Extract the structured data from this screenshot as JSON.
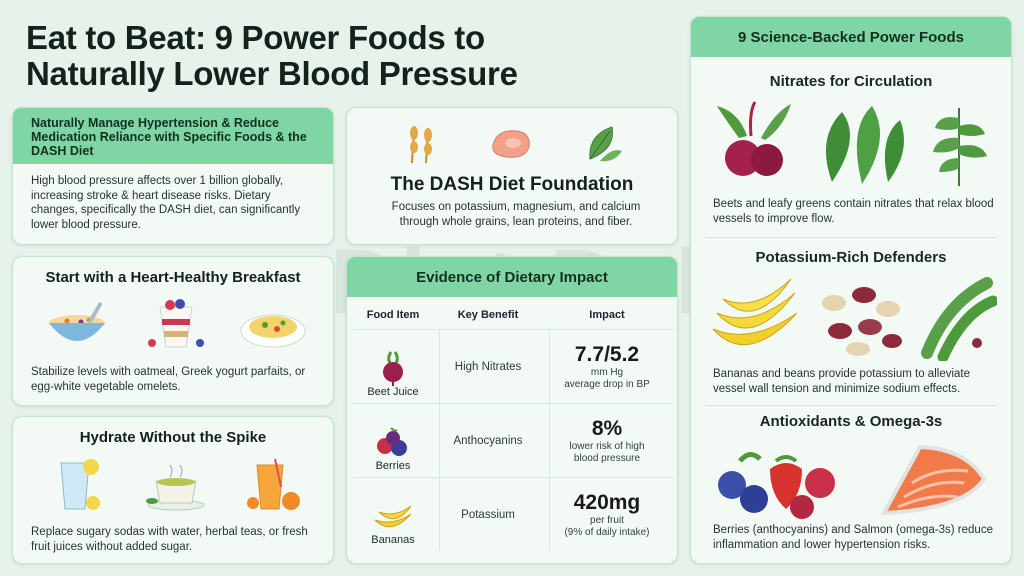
{
  "title": {
    "line1": "Eat to Beat: 9 Power Foods to",
    "line2": "Naturally Lower Blood Pressure"
  },
  "intro": {
    "heading": "Naturally Manage Hypertension & Reduce Medication Reliance with Specific Foods & the DASH Diet",
    "text": "High blood pressure affects over 1 billion globally, increasing stroke & heart disease risks. Dietary changes, specifically the DASH diet, can significantly lower blood pressure."
  },
  "breakfast": {
    "heading": "Start with a Heart-Healthy Breakfast",
    "text": "Stabilize levels with oatmeal, Greek yogurt parfaits, or egg-white vegetable omelets."
  },
  "hydrate": {
    "heading": "Hydrate Without the Spike",
    "text": "Replace sugary sodas with water, herbal teas, or fresh fruit juices without added sugar."
  },
  "dash": {
    "heading": "The DASH Diet Foundation",
    "text": "Focuses on potassium, magnesium, and calcium through whole grains, lean proteins, and fiber."
  },
  "evidence": {
    "heading": "Evidence of Dietary Impact",
    "columns": [
      "Food Item",
      "Key Benefit",
      "Impact"
    ],
    "rows": [
      {
        "food": "Beet Juice",
        "benefit": "High Nitrates",
        "value": "7.7/5.2",
        "unit": "mm Hg",
        "note": "average drop in BP"
      },
      {
        "food": "Berries",
        "benefit": "Anthocyanins",
        "value": "8%",
        "unit": "lower risk of high",
        "note": "blood pressure"
      },
      {
        "food": "Bananas",
        "benefit": "Potassium",
        "value": "420mg",
        "unit": "per fruit",
        "note": "(9% of daily intake)"
      }
    ]
  },
  "powerfoods": {
    "heading": "9 Science-Backed Power Foods",
    "sections": [
      {
        "title": "Nitrates for Circulation",
        "text": "Beets and leafy greens contain nitrates that relax blood vessels to improve flow."
      },
      {
        "title": "Potassium-Rich Defenders",
        "text": "Bananas and beans provide potassium to alleviate vessel wall tension and minimize sodium effects."
      },
      {
        "title": "Antioxidants & Omega-3s",
        "text": "Berries (anthocyanins) and Salmon (omega-3s) reduce inflammation and lower hypertension risks."
      }
    ]
  },
  "watermark": "Diet Dekho",
  "colors": {
    "accent": "#7fd6a4",
    "background": "#e6f2ea",
    "card": "#f3faf5"
  }
}
